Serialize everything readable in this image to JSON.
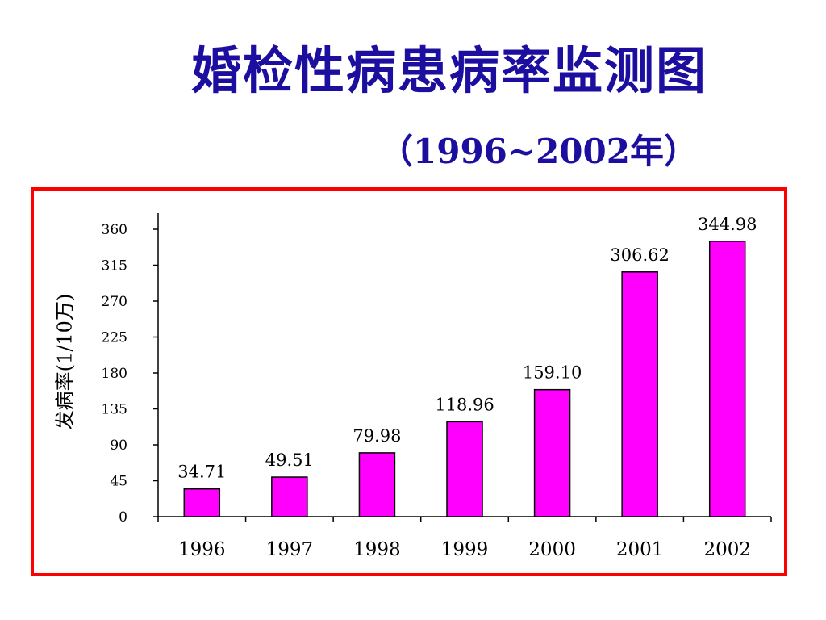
{
  "title": "婚检性病患病率监测图",
  "subtitle": "（1996~2002年）",
  "chart_data": {
    "type": "bar",
    "ylabel": "发病率(1/10万)",
    "categories": [
      "1996",
      "1997",
      "1998",
      "1999",
      "2000",
      "2001",
      "2002"
    ],
    "values": [
      34.71,
      49.51,
      79.98,
      118.96,
      159.1,
      306.62,
      344.98
    ],
    "data_labels": [
      "34.71",
      "49.51",
      "79.98",
      "118.96",
      "159.10",
      "306.62",
      "344.98"
    ],
    "ylim": [
      0,
      360
    ],
    "yticks": [
      0,
      45,
      90,
      135,
      180,
      225,
      270,
      315,
      360
    ],
    "grid": false,
    "legend": "none"
  },
  "colors": {
    "bar_fill": "#ff00ff",
    "bar_stroke": "#000000",
    "title": "#1c0fa0",
    "frame": "#ff0000"
  }
}
